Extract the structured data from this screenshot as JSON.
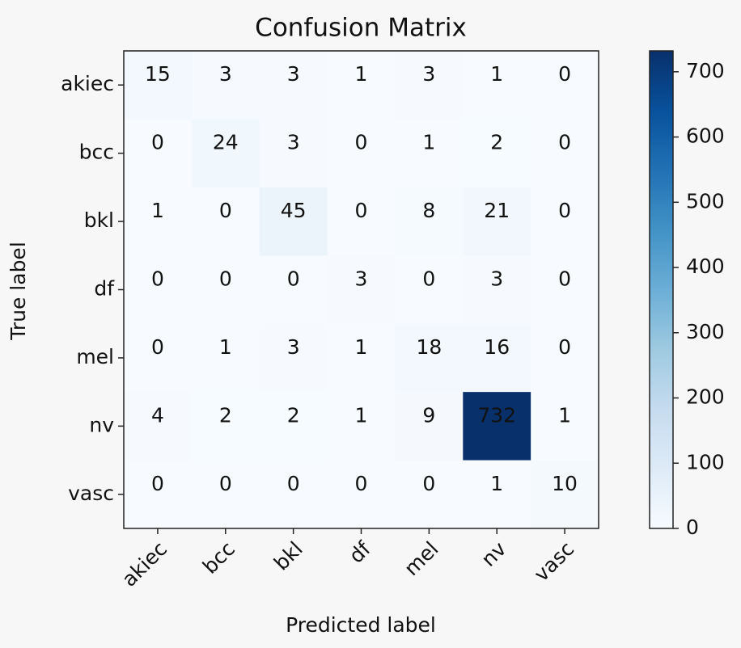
{
  "chart_data": {
    "type": "heatmap",
    "title": "Confusion Matrix",
    "x_label": "Predicted label",
    "y_label": "True label",
    "x_categories": [
      "akiec",
      "bcc",
      "bkl",
      "df",
      "mel",
      "nv",
      "vasc"
    ],
    "y_categories": [
      "akiec",
      "bcc",
      "bkl",
      "df",
      "mel",
      "nv",
      "vasc"
    ],
    "values": [
      [
        15,
        3,
        3,
        1,
        3,
        1,
        0
      ],
      [
        0,
        24,
        3,
        0,
        1,
        2,
        0
      ],
      [
        1,
        0,
        45,
        0,
        8,
        21,
        0
      ],
      [
        0,
        0,
        0,
        3,
        0,
        3,
        0
      ],
      [
        0,
        1,
        3,
        1,
        18,
        16,
        0
      ],
      [
        4,
        2,
        2,
        1,
        9,
        732,
        1
      ],
      [
        0,
        0,
        0,
        0,
        0,
        1,
        10
      ]
    ],
    "colormap": [
      "#f7fbff",
      "#deebf7",
      "#c6dbef",
      "#9ecae1",
      "#6baed6",
      "#4292c6",
      "#2171b5",
      "#08519c",
      "#08306b"
    ],
    "clim": [
      0,
      732
    ],
    "cticks": [
      0,
      100,
      200,
      300,
      400,
      500,
      600,
      700
    ]
  }
}
